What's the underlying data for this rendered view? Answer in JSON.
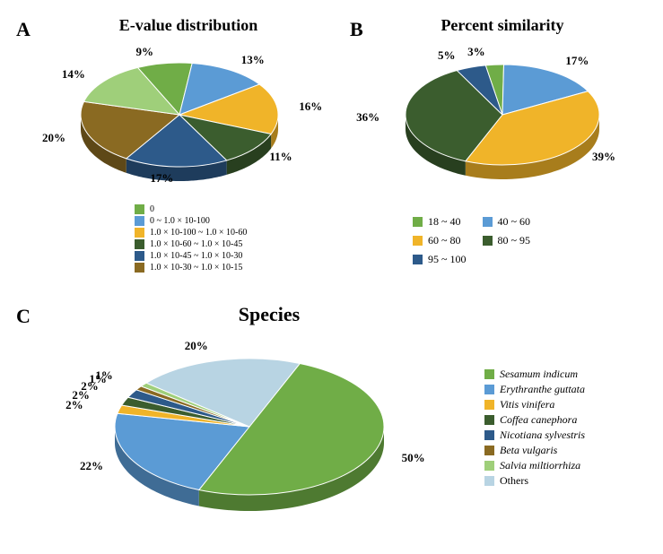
{
  "panelA": {
    "label": "A",
    "title": "E-value distribution",
    "type": "pie",
    "slices": [
      {
        "label": "0",
        "percent": 9,
        "color": "#70ad47",
        "dark": "#4e7a31",
        "display": "9%"
      },
      {
        "label": "0 ~ 1.0 × 10-100",
        "percent": 13,
        "color": "#5b9bd5",
        "dark": "#3f6c95",
        "display": "13%"
      },
      {
        "label": "1.0 × 10-100 ~ 1.0 × 10-60",
        "percent": 16,
        "color": "#f0b429",
        "dark": "#a87d1c",
        "display": "16%"
      },
      {
        "label": "1.0 × 10-60 ~ 1.0 × 10-45",
        "percent": 11,
        "color": "#3b5d2e",
        "dark": "#283f1f",
        "display": "11%"
      },
      {
        "label": "1.0 × 10-45 ~ 1.0 × 10-30",
        "percent": 17,
        "color": "#2d5a8a",
        "dark": "#1e3c5c",
        "display": "17%"
      },
      {
        "label": "1.0 × 10-30 ~ 1.0 × 10-15",
        "percent": 20,
        "color": "#8a6a22",
        "dark": "#5e4817",
        "display": "20%"
      },
      {
        "label": "",
        "percent": 14,
        "color": "#9fcf7a",
        "dark": "#6f9155",
        "display": "14%"
      }
    ],
    "startAngle": -115,
    "legend_fontsize": 10
  },
  "panelB": {
    "label": "B",
    "title": "Percent similarity",
    "type": "pie",
    "slices": [
      {
        "label": "18 ~ 40",
        "percent": 3,
        "color": "#70ad47",
        "dark": "#4e7a31",
        "display": "3%"
      },
      {
        "label": "40 ~ 60",
        "percent": 17,
        "color": "#5b9bd5",
        "dark": "#3f6c95",
        "display": "17%"
      },
      {
        "label": "60 ~ 80",
        "percent": 39,
        "color": "#f0b429",
        "dark": "#a87d1c",
        "display": "39%"
      },
      {
        "label": "80 ~ 95",
        "percent": 36,
        "color": "#3b5d2e",
        "dark": "#283f1f",
        "display": "36%"
      },
      {
        "label": "95 ~ 100",
        "percent": 5,
        "color": "#2d5a8a",
        "dark": "#1e3c5c",
        "display": "5%"
      }
    ],
    "startAngle": -100,
    "legend_fontsize": 12
  },
  "panelC": {
    "label": "C",
    "title": "Species",
    "type": "pie",
    "slices": [
      {
        "label": "Sesamum indicum",
        "percent": 50,
        "color": "#70ad47",
        "dark": "#4e7a31",
        "display": "50%",
        "italic": true
      },
      {
        "label": "Erythranthe guttata",
        "percent": 22,
        "color": "#5b9bd5",
        "dark": "#3f6c95",
        "display": "22%",
        "italic": true
      },
      {
        "label": "Vitis vinifera",
        "percent": 2,
        "color": "#f0b429",
        "dark": "#a87d1c",
        "display": "2%",
        "italic": true
      },
      {
        "label": "Coffea canephora",
        "percent": 2,
        "color": "#3b5d2e",
        "dark": "#283f1f",
        "display": "2%",
        "italic": true
      },
      {
        "label": "Nicotiana sylvestris",
        "percent": 2,
        "color": "#2d5a8a",
        "dark": "#1e3c5c",
        "display": "2%",
        "italic": true
      },
      {
        "label": "Beta vulgaris",
        "percent": 1,
        "color": "#8a6a22",
        "dark": "#5e4817",
        "display": "1%",
        "italic": true
      },
      {
        "label": "Salvia miltiorrhiza",
        "percent": 1,
        "color": "#9fcf7a",
        "dark": "#6f9155",
        "display": "1%",
        "italic": true
      },
      {
        "label": "Others",
        "percent": 20,
        "color": "#b8d4e3",
        "dark": "#8099a6",
        "display": "20%",
        "italic": false
      }
    ],
    "startAngle": -68,
    "legend_fontsize": 12
  },
  "styling": {
    "background": "#ffffff",
    "label_color": "#000000",
    "title_fontsize": 18,
    "panel_label_fontsize": 22,
    "slice_label_fontsize": 13,
    "pie_depth": 16
  }
}
